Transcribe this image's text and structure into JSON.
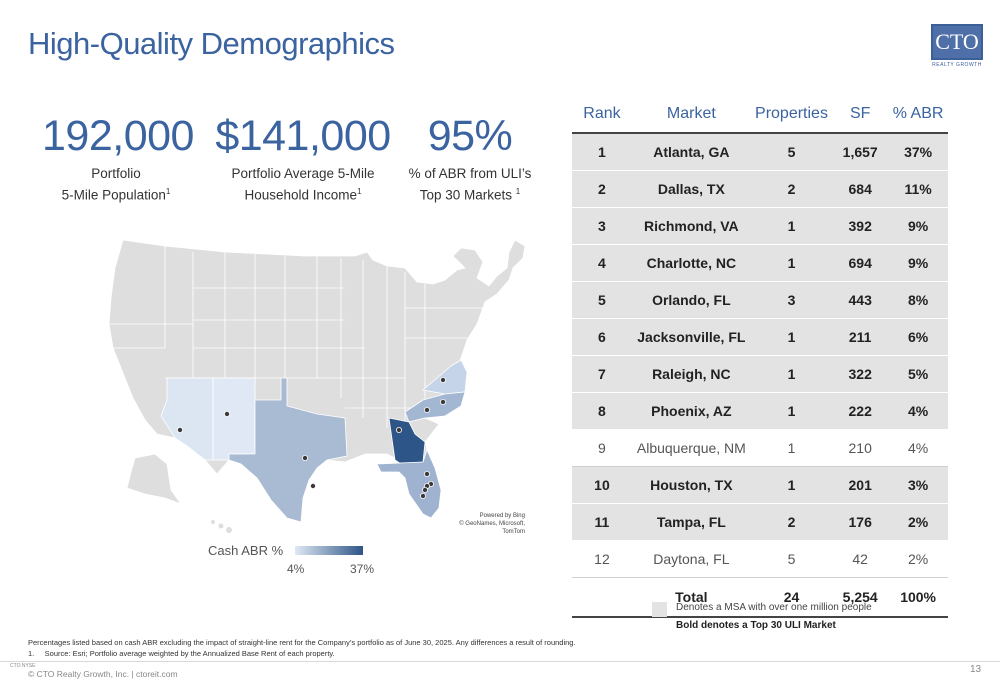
{
  "title": "High-Quality Demographics",
  "logo": {
    "main": "CTO",
    "sub": "REALTY GROWTH"
  },
  "stats": [
    {
      "value": "192,000",
      "line1": "Portfolio",
      "line2": "5-Mile Population",
      "sup": "1"
    },
    {
      "value": "$141,000",
      "line1": "Portfolio Average 5-Mile",
      "line2": "Household Income",
      "sup": "1"
    },
    {
      "value": "95%",
      "line1": "% of ABR from ULI’s",
      "line2": "Top 30 Markets ",
      "sup": "1"
    }
  ],
  "map": {
    "credit1": "Powered by Bing",
    "credit2": "© GeoNames, Microsoft, TomTom",
    "legend_title": "Cash ABR %",
    "legend_min": "4%",
    "legend_max": "37%",
    "colors": {
      "land": "#dedede",
      "border": "#ffffff",
      "low": "#dfe8f4",
      "high": "#2e5587"
    }
  },
  "table": {
    "headers": [
      "Rank",
      "Market",
      "Properties",
      "SF",
      "% ABR"
    ],
    "rows": [
      {
        "rank": "1",
        "market": "Atlanta, GA",
        "properties": "5",
        "sf": "1,657",
        "abr": "37%",
        "msa": true,
        "top30": true
      },
      {
        "rank": "2",
        "market": "Dallas, TX",
        "properties": "2",
        "sf": "684",
        "abr": "11%",
        "msa": true,
        "top30": true
      },
      {
        "rank": "3",
        "market": "Richmond, VA",
        "properties": "1",
        "sf": "392",
        "abr": "9%",
        "msa": true,
        "top30": true
      },
      {
        "rank": "4",
        "market": "Charlotte, NC",
        "properties": "1",
        "sf": "694",
        "abr": "9%",
        "msa": true,
        "top30": true
      },
      {
        "rank": "5",
        "market": "Orlando, FL",
        "properties": "3",
        "sf": "443",
        "abr": "8%",
        "msa": true,
        "top30": true
      },
      {
        "rank": "6",
        "market": "Jacksonville, FL",
        "properties": "1",
        "sf": "211",
        "abr": "6%",
        "msa": true,
        "top30": true
      },
      {
        "rank": "7",
        "market": "Raleigh, NC",
        "properties": "1",
        "sf": "322",
        "abr": "5%",
        "msa": true,
        "top30": true
      },
      {
        "rank": "8",
        "market": "Phoenix, AZ",
        "properties": "1",
        "sf": "222",
        "abr": "4%",
        "msa": true,
        "top30": true
      },
      {
        "rank": "9",
        "market": "Albuquerque, NM",
        "properties": "1",
        "sf": "210",
        "abr": "4%",
        "msa": false,
        "top30": false
      },
      {
        "rank": "10",
        "market": "Houston, TX",
        "properties": "1",
        "sf": "201",
        "abr": "3%",
        "msa": true,
        "top30": true
      },
      {
        "rank": "11",
        "market": "Tampa, FL",
        "properties": "2",
        "sf": "176",
        "abr": "2%",
        "msa": true,
        "top30": true
      },
      {
        "rank": "12",
        "market": "Daytona, FL",
        "properties": "5",
        "sf": "42",
        "abr": "2%",
        "msa": false,
        "top30": false
      }
    ],
    "total": {
      "label": "Total",
      "properties": "24",
      "sf": "5,254",
      "abr": "100%"
    }
  },
  "key": {
    "msa_note": "Denotes a MSA with over one million people",
    "bold_note": "Bold denotes a Top 30 ULI Market"
  },
  "footnotes": {
    "line1": "Percentages listed based on cash ABR excluding the impact of straight-line rent for the Company’s portfolio as of June 30, 2025. Any differences a result of rounding.",
    "line2": "1.     Source: Esri; Portfolio average weighted by the Annualized Base Rent of each property."
  },
  "footer": {
    "mini_logo": "CTO NYSE",
    "copyright": "© CTO Realty Growth, Inc. | ctoreit.com",
    "page": "13"
  }
}
